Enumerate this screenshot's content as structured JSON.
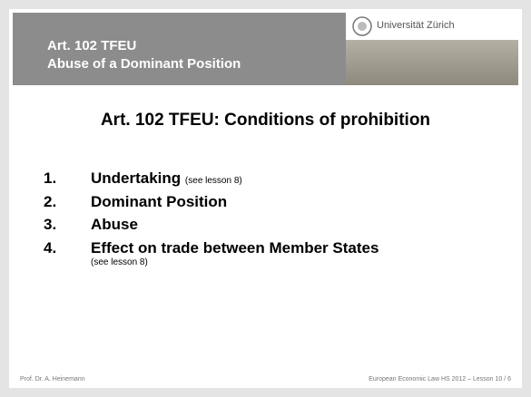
{
  "header": {
    "lines": [
      "Art. 102 TFEU",
      "Abuse of a Dominant Position"
    ],
    "logo_text": "Universität Zürich"
  },
  "slide": {
    "title": "Art. 102 TFEU: Conditions of prohibition",
    "items": [
      {
        "number": "1.",
        "text": "Undertaking",
        "note": "(see lesson 8)"
      },
      {
        "number": "2.",
        "text": "Dominant Position"
      },
      {
        "number": "3.",
        "text": "Abuse"
      },
      {
        "number": "4.",
        "text": "Effect on trade between Member States",
        "note": "(see lesson 8)"
      }
    ]
  },
  "footer": {
    "left": "Prof. Dr. A. Heinemann",
    "right": "European Economic Law HS 2012 – Lesson 10  /  6"
  }
}
